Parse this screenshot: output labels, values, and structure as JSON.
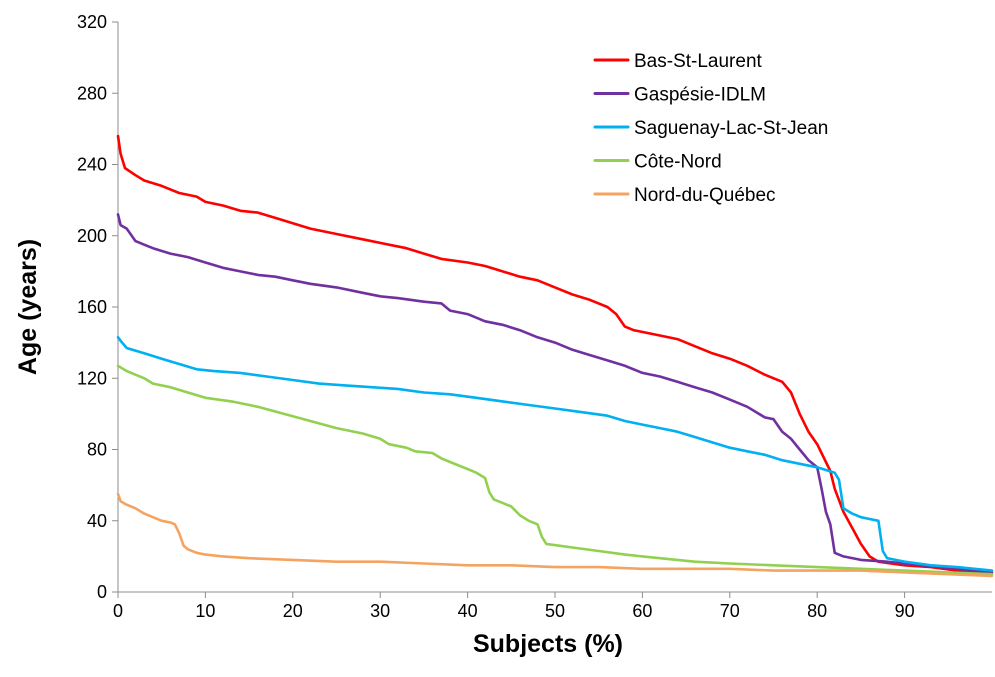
{
  "chart_data": {
    "type": "line",
    "title": "",
    "xlabel": "Subjects (%)",
    "ylabel": "Age (years)",
    "xlim": [
      0,
      100
    ],
    "ylim": [
      0,
      320
    ],
    "xticks": [
      0,
      10,
      20,
      30,
      40,
      50,
      60,
      70,
      80,
      90
    ],
    "yticks": [
      0,
      40,
      80,
      120,
      160,
      200,
      240,
      280,
      320
    ],
    "grid": false,
    "legend_position": "top-right",
    "series": [
      {
        "name": "Bas-St-Laurent",
        "color": "#ff0000",
        "points": [
          [
            0,
            256
          ],
          [
            0.3,
            246
          ],
          [
            0.8,
            238
          ],
          [
            2,
            234
          ],
          [
            3,
            231
          ],
          [
            5,
            228
          ],
          [
            7,
            224
          ],
          [
            9,
            222
          ],
          [
            10,
            219
          ],
          [
            12,
            217
          ],
          [
            14,
            214
          ],
          [
            16,
            213
          ],
          [
            18,
            210
          ],
          [
            20,
            207
          ],
          [
            22,
            204
          ],
          [
            25,
            201
          ],
          [
            28,
            198
          ],
          [
            30,
            196
          ],
          [
            33,
            193
          ],
          [
            35,
            190
          ],
          [
            37,
            187
          ],
          [
            40,
            185
          ],
          [
            42,
            183
          ],
          [
            44,
            180
          ],
          [
            46,
            177
          ],
          [
            48,
            175
          ],
          [
            50,
            171
          ],
          [
            52,
            167
          ],
          [
            54,
            164
          ],
          [
            56,
            160
          ],
          [
            57,
            156
          ],
          [
            58,
            149
          ],
          [
            59,
            147
          ],
          [
            62,
            144
          ],
          [
            64,
            142
          ],
          [
            66,
            138
          ],
          [
            68,
            134
          ],
          [
            70,
            131
          ],
          [
            72,
            127
          ],
          [
            74,
            122
          ],
          [
            76,
            118
          ],
          [
            77,
            112
          ],
          [
            78,
            100
          ],
          [
            79,
            90
          ],
          [
            80,
            83
          ],
          [
            81,
            73
          ],
          [
            81.5,
            68
          ],
          [
            82,
            58
          ],
          [
            83,
            45
          ],
          [
            84,
            36
          ],
          [
            85,
            27
          ],
          [
            86,
            20
          ],
          [
            87,
            17
          ],
          [
            90,
            15
          ],
          [
            93,
            14
          ],
          [
            96,
            12
          ],
          [
            99,
            11
          ],
          [
            100,
            10
          ]
        ]
      },
      {
        "name": "Gaspésie-IDLM",
        "color": "#7030a0",
        "points": [
          [
            0,
            212
          ],
          [
            0.3,
            206
          ],
          [
            1,
            204
          ],
          [
            2,
            197
          ],
          [
            3,
            195
          ],
          [
            4,
            193
          ],
          [
            6,
            190
          ],
          [
            8,
            188
          ],
          [
            10,
            185
          ],
          [
            12,
            182
          ],
          [
            14,
            180
          ],
          [
            16,
            178
          ],
          [
            18,
            177
          ],
          [
            20,
            175
          ],
          [
            22,
            173
          ],
          [
            25,
            171
          ],
          [
            28,
            168
          ],
          [
            30,
            166
          ],
          [
            32,
            165
          ],
          [
            35,
            163
          ],
          [
            37,
            162
          ],
          [
            38,
            158
          ],
          [
            40,
            156
          ],
          [
            42,
            152
          ],
          [
            44,
            150
          ],
          [
            46,
            147
          ],
          [
            48,
            143
          ],
          [
            50,
            140
          ],
          [
            52,
            136
          ],
          [
            54,
            133
          ],
          [
            56,
            130
          ],
          [
            58,
            127
          ],
          [
            60,
            123
          ],
          [
            62,
            121
          ],
          [
            64,
            118
          ],
          [
            66,
            115
          ],
          [
            68,
            112
          ],
          [
            70,
            108
          ],
          [
            72,
            104
          ],
          [
            74,
            98
          ],
          [
            75,
            97
          ],
          [
            76,
            90
          ],
          [
            77,
            86
          ],
          [
            78,
            80
          ],
          [
            79,
            74
          ],
          [
            80,
            70
          ],
          [
            80.5,
            58
          ],
          [
            81,
            45
          ],
          [
            81.5,
            38
          ],
          [
            82,
            22
          ],
          [
            83,
            20
          ],
          [
            85,
            18
          ],
          [
            88,
            17
          ],
          [
            92,
            15
          ],
          [
            96,
            13
          ],
          [
            100,
            11
          ]
        ]
      },
      {
        "name": "Saguenay-Lac-St-Jean",
        "color": "#00b0f0",
        "points": [
          [
            0,
            143
          ],
          [
            0.3,
            141
          ],
          [
            1,
            137
          ],
          [
            3,
            134
          ],
          [
            5,
            131
          ],
          [
            7,
            128
          ],
          [
            9,
            125
          ],
          [
            11,
            124
          ],
          [
            14,
            123
          ],
          [
            17,
            121
          ],
          [
            20,
            119
          ],
          [
            23,
            117
          ],
          [
            26,
            116
          ],
          [
            29,
            115
          ],
          [
            32,
            114
          ],
          [
            35,
            112
          ],
          [
            38,
            111
          ],
          [
            41,
            109
          ],
          [
            44,
            107
          ],
          [
            47,
            105
          ],
          [
            50,
            103
          ],
          [
            53,
            101
          ],
          [
            56,
            99
          ],
          [
            58,
            96
          ],
          [
            60,
            94
          ],
          [
            62,
            92
          ],
          [
            64,
            90
          ],
          [
            66,
            87
          ],
          [
            68,
            84
          ],
          [
            70,
            81
          ],
          [
            72,
            79
          ],
          [
            74,
            77
          ],
          [
            76,
            74
          ],
          [
            78,
            72
          ],
          [
            80,
            70
          ],
          [
            82,
            67
          ],
          [
            82.5,
            63
          ],
          [
            83,
            47
          ],
          [
            84,
            44
          ],
          [
            85,
            42
          ],
          [
            86,
            41
          ],
          [
            87,
            40
          ],
          [
            87.5,
            23
          ],
          [
            88,
            19
          ],
          [
            90,
            17
          ],
          [
            93,
            15
          ],
          [
            96,
            14
          ],
          [
            100,
            12
          ]
        ]
      },
      {
        "name": "Côte-Nord",
        "color": "#92d050",
        "points": [
          [
            0,
            127
          ],
          [
            1,
            124
          ],
          [
            2,
            122
          ],
          [
            3,
            120
          ],
          [
            4,
            117
          ],
          [
            6,
            115
          ],
          [
            8,
            112
          ],
          [
            10,
            109
          ],
          [
            13,
            107
          ],
          [
            16,
            104
          ],
          [
            19,
            100
          ],
          [
            22,
            96
          ],
          [
            25,
            92
          ],
          [
            28,
            89
          ],
          [
            30,
            86
          ],
          [
            31,
            83
          ],
          [
            33,
            81
          ],
          [
            34,
            79
          ],
          [
            36,
            78
          ],
          [
            37,
            75
          ],
          [
            38,
            73
          ],
          [
            40,
            69
          ],
          [
            41,
            67
          ],
          [
            42,
            64
          ],
          [
            42.5,
            56
          ],
          [
            43,
            52
          ],
          [
            44,
            50
          ],
          [
            45,
            48
          ],
          [
            46,
            43
          ],
          [
            47,
            40
          ],
          [
            48,
            38
          ],
          [
            48.5,
            31
          ],
          [
            49,
            27
          ],
          [
            52,
            25
          ],
          [
            55,
            23
          ],
          [
            58,
            21
          ],
          [
            62,
            19
          ],
          [
            66,
            17
          ],
          [
            70,
            16
          ],
          [
            75,
            15
          ],
          [
            80,
            14
          ],
          [
            85,
            13
          ],
          [
            90,
            12
          ],
          [
            95,
            11
          ],
          [
            100,
            10
          ]
        ]
      },
      {
        "name": "Nord-du-Québec",
        "color": "#f4a460",
        "points": [
          [
            0,
            55
          ],
          [
            0.3,
            51
          ],
          [
            1,
            49
          ],
          [
            2,
            47
          ],
          [
            3,
            44
          ],
          [
            4,
            42
          ],
          [
            5,
            40
          ],
          [
            6,
            39
          ],
          [
            6.5,
            38
          ],
          [
            7,
            33
          ],
          [
            7.5,
            26
          ],
          [
            8,
            24
          ],
          [
            9,
            22
          ],
          [
            10,
            21
          ],
          [
            12,
            20
          ],
          [
            15,
            19
          ],
          [
            20,
            18
          ],
          [
            25,
            17
          ],
          [
            30,
            17
          ],
          [
            35,
            16
          ],
          [
            40,
            15
          ],
          [
            45,
            15
          ],
          [
            50,
            14
          ],
          [
            55,
            14
          ],
          [
            60,
            13
          ],
          [
            65,
            13
          ],
          [
            70,
            13
          ],
          [
            75,
            12
          ],
          [
            80,
            12
          ],
          [
            85,
            12
          ],
          [
            90,
            11
          ],
          [
            95,
            10
          ],
          [
            100,
            9
          ]
        ]
      }
    ]
  }
}
